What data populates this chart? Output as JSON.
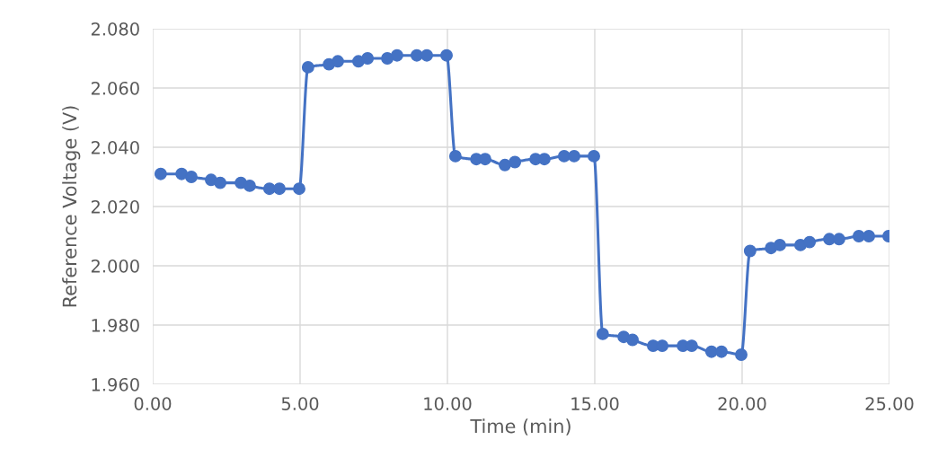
{
  "chart_data": {
    "type": "line",
    "xlabel": "Time (min)",
    "ylabel": "Reference Voltage (V)",
    "x": [
      0.27,
      0.98,
      1.31,
      1.98,
      2.29,
      2.99,
      3.29,
      3.96,
      4.3,
      4.97,
      5.27,
      5.98,
      6.28,
      6.98,
      7.29,
      7.96,
      8.29,
      8.96,
      9.3,
      9.97,
      10.27,
      10.98,
      11.28,
      11.95,
      12.29,
      12.99,
      13.29,
      13.96,
      14.3,
      14.97,
      15.27,
      15.98,
      16.28,
      16.98,
      17.29,
      17.99,
      18.29,
      18.96,
      19.3,
      19.97,
      20.27,
      20.98,
      21.28,
      21.98,
      22.29,
      22.96,
      23.29,
      23.96,
      24.3,
      24.97
    ],
    "series": [
      {
        "color": "#4472c4",
        "values": [
          2.031,
          2.031,
          2.03,
          2.029,
          2.028,
          2.028,
          2.027,
          2.026,
          2.026,
          2.026,
          2.067,
          2.068,
          2.069,
          2.069,
          2.07,
          2.07,
          2.071,
          2.071,
          2.071,
          2.071,
          2.037,
          2.036,
          2.036,
          2.034,
          2.035,
          2.036,
          2.036,
          2.037,
          2.037,
          2.037,
          1.977,
          1.976,
          1.975,
          1.973,
          1.973,
          1.973,
          1.973,
          1.971,
          1.971,
          1.97,
          2.005,
          2.006,
          2.007,
          2.007,
          2.008,
          2.009,
          2.009,
          2.01,
          2.01,
          2.01
        ]
      }
    ],
    "xlim": [
      0,
      25
    ],
    "xticks": [
      {
        "value": 0,
        "label": "0.00"
      },
      {
        "value": 5,
        "label": "5.00"
      },
      {
        "value": 10,
        "label": "10.00"
      },
      {
        "value": 15,
        "label": "15.00"
      },
      {
        "value": 20,
        "label": "20.00"
      },
      {
        "value": 25,
        "label": "25.00"
      }
    ],
    "ylim": [
      1.96,
      2.08
    ],
    "yticks": [
      {
        "value": 1.96,
        "label": "1.960"
      },
      {
        "value": 1.98,
        "label": "1.980"
      },
      {
        "value": 2.0,
        "label": "2.000"
      },
      {
        "value": 2.02,
        "label": "2.020"
      },
      {
        "value": 2.04,
        "label": "2.040"
      },
      {
        "value": 2.06,
        "label": "2.060"
      },
      {
        "value": 2.08,
        "label": "2.080"
      }
    ],
    "grid": true,
    "marker": "circle",
    "line_style": "solid"
  }
}
